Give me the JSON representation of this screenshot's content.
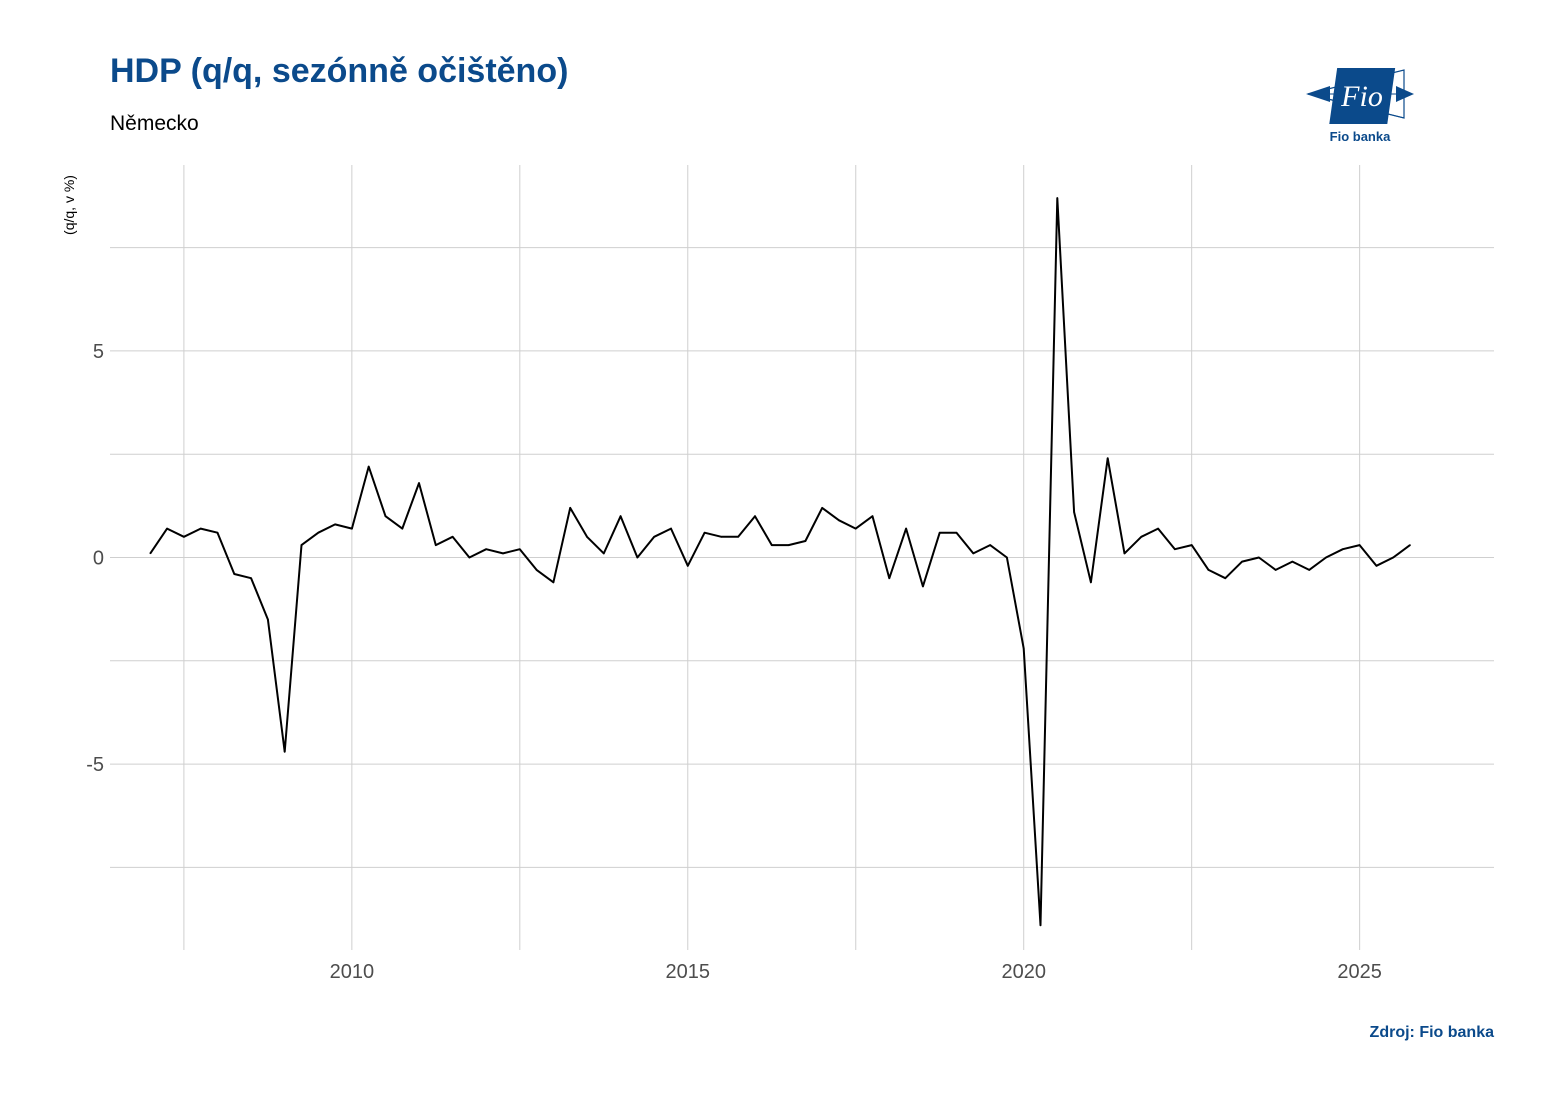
{
  "title": "HDP (q/q, sezónně očištěno)",
  "subtitle": "Německo",
  "source": "Zdroj: Fio banka",
  "logo": {
    "mark_text": "Fio",
    "caption": "Fio banka",
    "color": "#0b4a8b"
  },
  "chart_data": {
    "type": "line",
    "ylabel": "(q/q, v %)",
    "xlabel": "",
    "xlim": [
      2006.4,
      2027.0
    ],
    "ylim": [
      -9.5,
      9.5
    ],
    "x_ticks": [
      2010,
      2015,
      2020,
      2025
    ],
    "y_ticks": [
      -5,
      0,
      5
    ],
    "grid": true,
    "line_color": "#000000",
    "series": [
      {
        "x": [
          2007.0,
          2007.25,
          2007.5,
          2007.75,
          2008.0,
          2008.25,
          2008.5,
          2008.75,
          2009.0,
          2009.25,
          2009.5,
          2009.75,
          2010.0,
          2010.25,
          2010.5,
          2010.75,
          2011.0,
          2011.25,
          2011.5,
          2011.75,
          2012.0,
          2012.25,
          2012.5,
          2012.75,
          2013.0,
          2013.25,
          2013.5,
          2013.75,
          2014.0,
          2014.25,
          2014.5,
          2014.75,
          2015.0,
          2015.25,
          2015.5,
          2015.75,
          2016.0,
          2016.25,
          2016.5,
          2016.75,
          2017.0,
          2017.25,
          2017.5,
          2017.75,
          2018.0,
          2018.25,
          2018.5,
          2018.75,
          2019.0,
          2019.25,
          2019.5,
          2019.75,
          2020.0,
          2020.25,
          2020.5,
          2020.75,
          2021.0,
          2021.25,
          2021.5,
          2021.75,
          2022.0,
          2022.25,
          2022.5,
          2022.75,
          2023.0,
          2023.25,
          2023.5,
          2023.75,
          2024.0,
          2024.25,
          2024.5,
          2024.75,
          2025.0,
          2025.25,
          2025.5,
          2025.75
        ],
        "values": [
          0.1,
          0.7,
          0.5,
          0.7,
          0.6,
          -0.4,
          -0.5,
          -1.5,
          -4.7,
          0.3,
          0.6,
          0.8,
          0.7,
          2.2,
          1.0,
          0.7,
          1.8,
          0.3,
          0.5,
          0.0,
          0.2,
          0.1,
          0.2,
          -0.3,
          -0.6,
          1.2,
          0.5,
          0.1,
          1.0,
          0.0,
          0.5,
          0.7,
          -0.2,
          0.6,
          0.5,
          0.5,
          1.0,
          0.3,
          0.3,
          0.4,
          1.2,
          0.9,
          0.7,
          1.0,
          -0.5,
          0.7,
          -0.7,
          0.6,
          0.6,
          0.1,
          0.3,
          0.0,
          -2.2,
          -8.9,
          8.7,
          1.1,
          -0.6,
          2.4,
          0.1,
          0.5,
          0.7,
          0.2,
          0.3,
          -0.3,
          -0.5,
          -0.1,
          0.0,
          -0.3,
          -0.1,
          -0.3,
          0.0,
          0.2,
          0.3,
          -0.2,
          0.0,
          0.3
        ]
      }
    ]
  }
}
